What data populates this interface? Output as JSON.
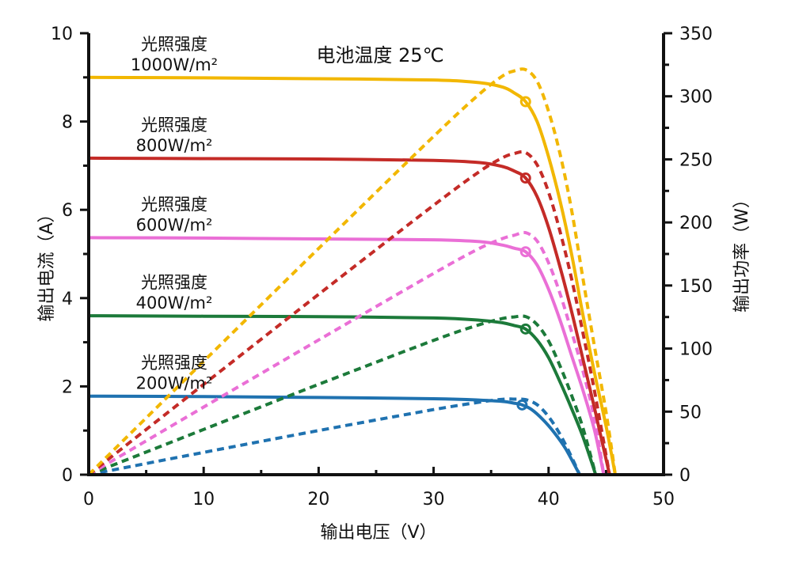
{
  "chart_data": {
    "type": "line",
    "title": "电池温度 25℃",
    "xlabel": "输出电压（V）",
    "ylabel": "输出电流（A）",
    "y2label": "输出功率（W）",
    "xlim": [
      0,
      50
    ],
    "ylim": [
      0,
      10
    ],
    "y2lim": [
      0,
      350
    ],
    "x_ticks": [
      "0",
      "10",
      "20",
      "30",
      "40",
      "50"
    ],
    "y_ticks": [
      "0",
      "2",
      "4",
      "6",
      "8",
      "10"
    ],
    "y2_ticks": [
      "0",
      "50",
      "100",
      "150",
      "200",
      "250",
      "300",
      "350"
    ],
    "series": [
      {
        "name": "光照强度 1000W/m²",
        "label_line1": "光照强度",
        "label_line2": "1000W/m²",
        "color": "#f2b700",
        "current": [
          [
            0,
            9.0
          ],
          [
            10,
            8.99
          ],
          [
            20,
            8.97
          ],
          [
            30,
            8.94
          ],
          [
            34,
            8.88
          ],
          [
            36,
            8.78
          ],
          [
            37,
            8.65
          ],
          [
            38,
            8.45
          ],
          [
            39,
            8.0
          ],
          [
            40,
            7.2
          ],
          [
            41,
            6.2
          ],
          [
            42,
            5.0
          ],
          [
            43,
            3.6
          ],
          [
            44,
            2.3
          ],
          [
            45,
            1.1
          ],
          [
            45.8,
            0
          ]
        ],
        "power": [
          [
            0,
            0
          ],
          [
            10,
            89.9
          ],
          [
            20,
            179.4
          ],
          [
            30,
            268.2
          ],
          [
            34,
            301.9
          ],
          [
            36,
            316.1
          ],
          [
            37,
            320.1
          ],
          [
            38,
            321.1
          ],
          [
            39,
            312.0
          ],
          [
            40,
            288.0
          ],
          [
            41,
            254.2
          ],
          [
            42,
            210.0
          ],
          [
            43,
            154.8
          ],
          [
            44,
            101.2
          ],
          [
            45,
            49.5
          ],
          [
            45.8,
            0
          ]
        ],
        "mpp": [
          38,
          8.45
        ]
      },
      {
        "name": "光照强度 800W/m²",
        "label_line1": "光照强度",
        "label_line2": "800W/m²",
        "color": "#c42b27",
        "current": [
          [
            0,
            7.17
          ],
          [
            10,
            7.16
          ],
          [
            20,
            7.15
          ],
          [
            30,
            7.12
          ],
          [
            34,
            7.07
          ],
          [
            36,
            6.98
          ],
          [
            37,
            6.88
          ],
          [
            38,
            6.72
          ],
          [
            39,
            6.3
          ],
          [
            40,
            5.6
          ],
          [
            41,
            4.7
          ],
          [
            42,
            3.7
          ],
          [
            43,
            2.6
          ],
          [
            44,
            1.5
          ],
          [
            45.3,
            0
          ]
        ],
        "power": [
          [
            0,
            0
          ],
          [
            10,
            71.6
          ],
          [
            20,
            143.0
          ],
          [
            30,
            213.6
          ],
          [
            34,
            240.4
          ],
          [
            36,
            251.3
          ],
          [
            37,
            254.6
          ],
          [
            38,
            255.4
          ],
          [
            39,
            245.7
          ],
          [
            40,
            224.0
          ],
          [
            41,
            192.7
          ],
          [
            42,
            155.4
          ],
          [
            43,
            111.8
          ],
          [
            44,
            66.0
          ],
          [
            45.3,
            0
          ]
        ],
        "mpp": [
          38,
          6.72
        ]
      },
      {
        "name": "光照强度 600W/m²",
        "label_line1": "光照强度",
        "label_line2": "600W/m²",
        "color": "#ea6fd6",
        "current": [
          [
            0,
            5.37
          ],
          [
            10,
            5.36
          ],
          [
            20,
            5.34
          ],
          [
            30,
            5.32
          ],
          [
            34,
            5.28
          ],
          [
            36,
            5.2
          ],
          [
            37,
            5.13
          ],
          [
            38,
            5.05
          ],
          [
            39,
            4.75
          ],
          [
            40,
            4.2
          ],
          [
            41,
            3.5
          ],
          [
            42,
            2.7
          ],
          [
            43,
            1.9
          ],
          [
            44,
            1.0
          ],
          [
            44.8,
            0
          ]
        ],
        "power": [
          [
            0,
            0
          ],
          [
            10,
            53.6
          ],
          [
            20,
            106.8
          ],
          [
            30,
            159.6
          ],
          [
            34,
            179.5
          ],
          [
            36,
            187.2
          ],
          [
            37,
            189.8
          ],
          [
            38,
            191.9
          ],
          [
            39,
            185.3
          ],
          [
            40,
            168.0
          ],
          [
            41,
            143.5
          ],
          [
            42,
            113.4
          ],
          [
            43,
            81.7
          ],
          [
            44,
            44.0
          ],
          [
            44.8,
            0
          ]
        ],
        "mpp": [
          38,
          5.05
        ]
      },
      {
        "name": "光照强度 400W/m²",
        "label_line1": "光照强度",
        "label_line2": "400W/m²",
        "color": "#1c7a3a",
        "current": [
          [
            0,
            3.6
          ],
          [
            10,
            3.59
          ],
          [
            20,
            3.58
          ],
          [
            30,
            3.55
          ],
          [
            34,
            3.5
          ],
          [
            36,
            3.44
          ],
          [
            37,
            3.38
          ],
          [
            38,
            3.3
          ],
          [
            39,
            3.05
          ],
          [
            40,
            2.65
          ],
          [
            41,
            2.1
          ],
          [
            42,
            1.5
          ],
          [
            43,
            0.85
          ],
          [
            44.1,
            0
          ]
        ],
        "power": [
          [
            0,
            0
          ],
          [
            10,
            35.9
          ],
          [
            20,
            71.6
          ],
          [
            30,
            106.5
          ],
          [
            34,
            119.0
          ],
          [
            36,
            123.8
          ],
          [
            37,
            125.1
          ],
          [
            38,
            125.4
          ],
          [
            39,
            119.0
          ],
          [
            40,
            106.0
          ],
          [
            41,
            86.1
          ],
          [
            42,
            63.0
          ],
          [
            43,
            36.6
          ],
          [
            44.1,
            0
          ]
        ],
        "mpp": [
          38,
          3.3
        ]
      },
      {
        "name": "光照强度 200W/m²",
        "label_line1": "光照强度",
        "label_line2": "200W/m²",
        "color": "#1f72b0",
        "current": [
          [
            0,
            1.78
          ],
          [
            10,
            1.77
          ],
          [
            20,
            1.75
          ],
          [
            30,
            1.72
          ],
          [
            34,
            1.69
          ],
          [
            36,
            1.66
          ],
          [
            37,
            1.62
          ],
          [
            37.7,
            1.58
          ],
          [
            38.5,
            1.48
          ],
          [
            39.5,
            1.25
          ],
          [
            40.5,
            0.95
          ],
          [
            41.5,
            0.58
          ],
          [
            42.7,
            0
          ]
        ],
        "power": [
          [
            0,
            0
          ],
          [
            10,
            17.7
          ],
          [
            20,
            35.0
          ],
          [
            30,
            51.6
          ],
          [
            34,
            57.5
          ],
          [
            36,
            59.8
          ],
          [
            37,
            59.9
          ],
          [
            38,
            59.5
          ],
          [
            39,
            55.5
          ],
          [
            40,
            46.0
          ],
          [
            41,
            32.0
          ],
          [
            42,
            14.0
          ],
          [
            42.7,
            0
          ]
        ],
        "mpp": [
          37.7,
          1.58
        ]
      }
    ]
  }
}
